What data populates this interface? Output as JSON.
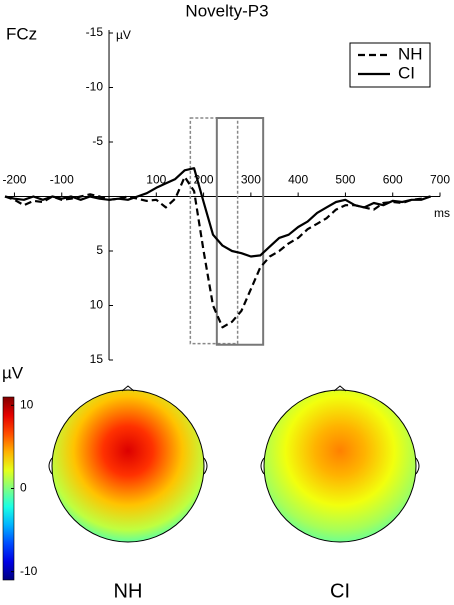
{
  "chart_data": {
    "type": "line",
    "title": "Novelty-P3",
    "channel_label": "FCz",
    "y_unit": "µV",
    "x_unit": "ms",
    "x": [
      -220,
      -200,
      -180,
      -160,
      -140,
      -120,
      -100,
      -80,
      -60,
      -40,
      -20,
      0,
      20,
      40,
      60,
      80,
      100,
      120,
      140,
      160,
      180,
      200,
      220,
      240,
      260,
      280,
      300,
      320,
      340,
      360,
      380,
      400,
      420,
      440,
      460,
      480,
      500,
      520,
      540,
      560,
      580,
      600,
      620,
      640,
      660,
      680
    ],
    "series": [
      {
        "name": "NH",
        "color": "#000000",
        "linestyle": "dashed",
        "values": [
          0,
          0.3,
          0.8,
          0.4,
          0.5,
          0,
          0.3,
          0.2,
          0,
          -0.2,
          0,
          0.3,
          0.2,
          0,
          0.2,
          0.4,
          0.3,
          1.0,
          0.2,
          -1.8,
          -0.5,
          5,
          10,
          12,
          11.5,
          10.5,
          8.5,
          6.5,
          5.5,
          5,
          4.3,
          3.8,
          3,
          2.5,
          2,
          1.2,
          0.8,
          0.8,
          1,
          1.2,
          0.6,
          0.5,
          0.6,
          0.3,
          0.2,
          0
        ]
      },
      {
        "name": "CI",
        "color": "#000000",
        "linestyle": "solid",
        "values": [
          0,
          0.2,
          0.3,
          0,
          0.3,
          0,
          0.2,
          0,
          0.3,
          0,
          0.2,
          0.3,
          0.2,
          0.3,
          0,
          -0.3,
          -0.8,
          -1.2,
          -1.6,
          -2.4,
          -2.6,
          0.5,
          3.5,
          4.5,
          5,
          5.2,
          5.5,
          5.4,
          4.6,
          3.8,
          3.5,
          2.8,
          2.3,
          1.5,
          1,
          0.5,
          0.3,
          0.8,
          1,
          0.6,
          0.8,
          0.4,
          0.5,
          0.3,
          0.3,
          0
        ]
      }
    ],
    "xlim": [
      -220,
      700
    ],
    "xticks": [
      -200,
      -100,
      100,
      200,
      300,
      400,
      500,
      600,
      700
    ],
    "ylim": [
      -15,
      15
    ],
    "yticks": [
      -15,
      -10,
      -5,
      5,
      10,
      15
    ],
    "y_inverted": true,
    "windows": [
      {
        "linestyle": "dashed",
        "color": "#888888",
        "xlim": [
          172,
          272
        ],
        "ylim": [
          -7.2,
          13.5
        ]
      },
      {
        "linestyle": "solid",
        "color": "#777777",
        "xlim": [
          228,
          326
        ],
        "ylim": [
          -7.2,
          13.6
        ]
      }
    ],
    "legend": "upper right",
    "colorbar": {
      "label": "µV",
      "clim": [
        -11,
        11
      ],
      "ticks": [
        10,
        0,
        -10
      ]
    },
    "topomaps": [
      {
        "label": "NH",
        "peak": 9
      },
      {
        "label": "CI",
        "peak": 5.5
      }
    ]
  }
}
